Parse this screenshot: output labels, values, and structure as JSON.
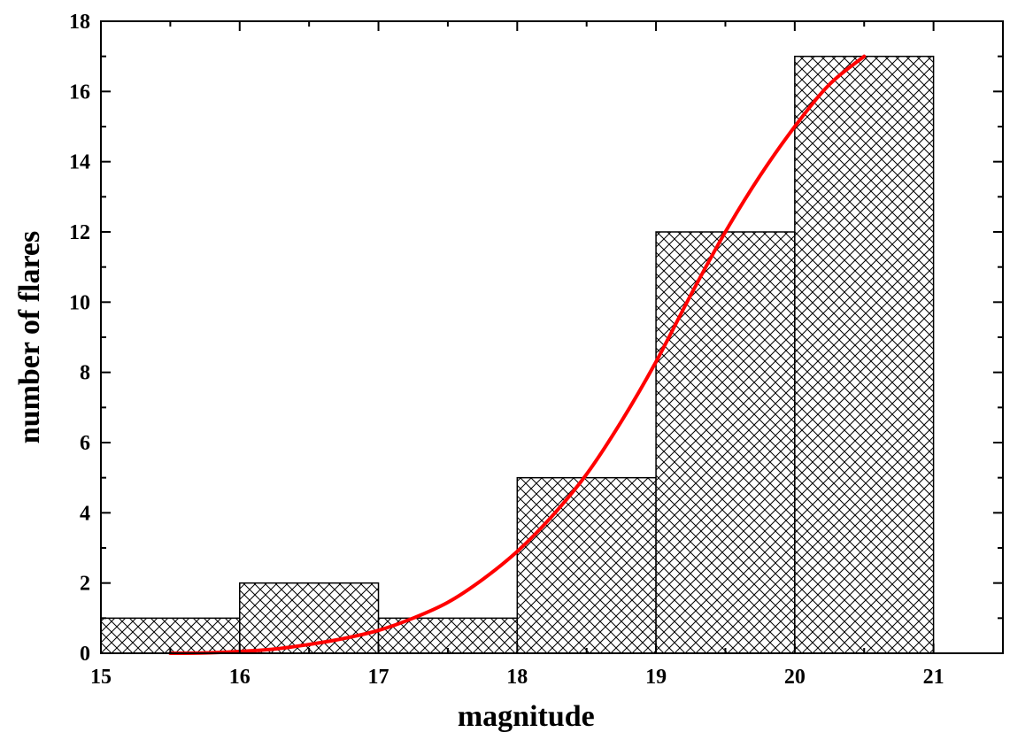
{
  "chart_data": {
    "type": "bar",
    "title": "",
    "xlabel": "magnitude",
    "ylabel": "number of flares",
    "xlim": [
      15,
      21.5
    ],
    "ylim": [
      0,
      18
    ],
    "x_ticks": [
      15,
      16,
      17,
      18,
      19,
      20,
      21
    ],
    "y_ticks": [
      0,
      2,
      4,
      6,
      8,
      10,
      12,
      14,
      16,
      18
    ],
    "grid": false,
    "legend": "none",
    "histogram": {
      "bin_edges": [
        15,
        16,
        17,
        18,
        19,
        20,
        21
      ],
      "values": [
        1,
        2,
        1,
        5,
        12,
        17
      ],
      "fill": "crosshatch",
      "edge_color": "#000000"
    },
    "fit_curve": {
      "color": "#ff0000",
      "x": [
        15.5,
        15.75,
        16.0,
        16.25,
        16.5,
        16.75,
        17.0,
        17.25,
        17.5,
        17.75,
        18.0,
        18.25,
        18.5,
        18.75,
        19.0,
        19.25,
        19.5,
        19.75,
        20.0,
        20.25,
        20.5
      ],
      "y": [
        0.0,
        0.01,
        0.05,
        0.12,
        0.25,
        0.42,
        0.65,
        1.0,
        1.45,
        2.1,
        2.9,
        3.9,
        5.1,
        6.6,
        8.3,
        10.2,
        12.0,
        13.6,
        15.0,
        16.2,
        17.0
      ]
    }
  }
}
